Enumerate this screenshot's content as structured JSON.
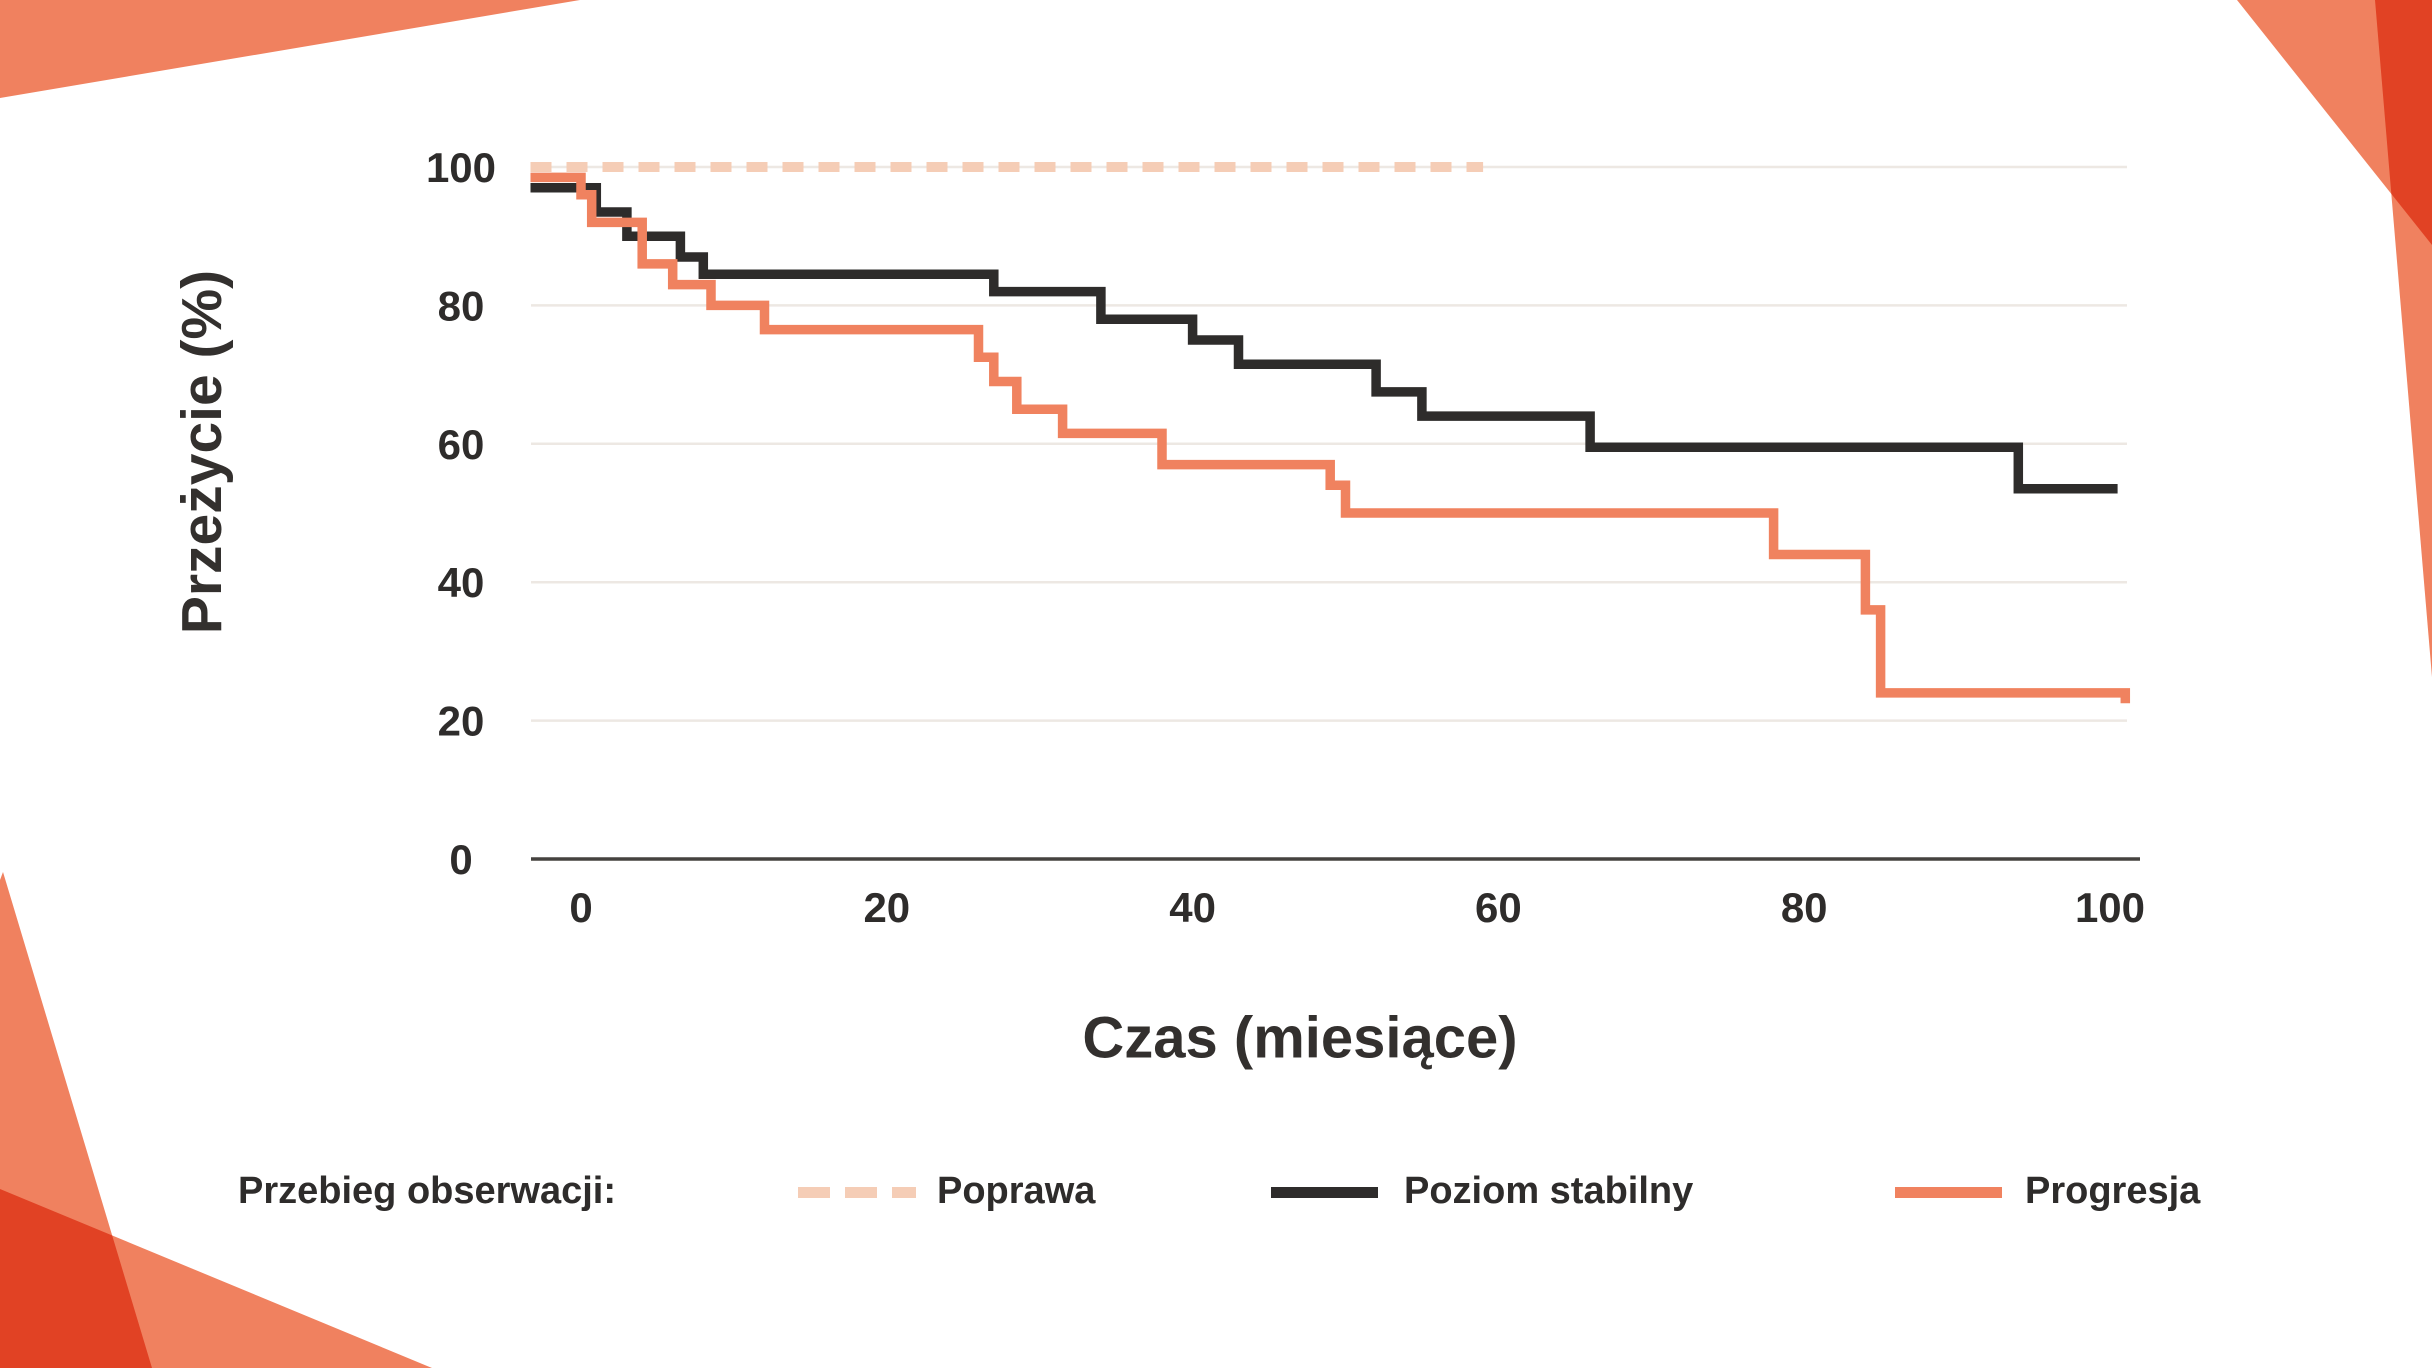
{
  "page": {
    "background": "#ffffff",
    "text_color": "#2E2C2B"
  },
  "decorations": {
    "corner_shape_color": "#F0815F",
    "overlap_blend_color": "#E24C2C",
    "description": "salmon corner wedges, overlaps darker red"
  },
  "chart_data": {
    "type": "line",
    "subtype": "kaplan-meier step curves",
    "title": "",
    "xlabel": "Czas (miesiące)",
    "ylabel": "Przeżycie (%)",
    "x_ticks": [
      0,
      20,
      40,
      60,
      80,
      100
    ],
    "y_ticks": [
      0,
      20,
      40,
      60,
      80,
      100
    ],
    "xlim": [
      -3.3,
      101.5
    ],
    "ylim": [
      0,
      100
    ],
    "grid": "horizontal",
    "x_start": -3.3,
    "series": [
      {
        "name": "Poprawa",
        "color": "#F5CDB6",
        "dash": true,
        "points": [
          [
            0,
            100
          ],
          [
            59,
            100
          ]
        ]
      },
      {
        "name": "Poziom stabilny",
        "color": "#2E2C2B",
        "dash": false,
        "points": [
          [
            0,
            97
          ],
          [
            1,
            93.5
          ],
          [
            3,
            90
          ],
          [
            6.5,
            87
          ],
          [
            8,
            84.5
          ],
          [
            27,
            82
          ],
          [
            34,
            78
          ],
          [
            40,
            75
          ],
          [
            43,
            71.5
          ],
          [
            52,
            67.5
          ],
          [
            55,
            64
          ],
          [
            66,
            59.5
          ],
          [
            94,
            53.5
          ],
          [
            100.5,
            53.5
          ]
        ]
      },
      {
        "name": "Progresja",
        "color": "#F0825F",
        "dash": false,
        "points": [
          [
            0,
            98.5
          ],
          [
            0,
            96
          ],
          [
            0.7,
            92
          ],
          [
            4,
            86
          ],
          [
            6,
            83
          ],
          [
            8.5,
            80
          ],
          [
            12,
            76.5
          ],
          [
            26,
            72.5
          ],
          [
            27,
            69
          ],
          [
            28.5,
            65
          ],
          [
            31.5,
            61.5
          ],
          [
            38,
            57
          ],
          [
            49,
            54
          ],
          [
            50,
            50
          ],
          [
            78,
            44
          ],
          [
            84,
            36
          ],
          [
            85,
            24
          ],
          [
            101,
            22.5
          ]
        ]
      }
    ]
  },
  "legend": {
    "title": "Przebieg obserwacji:",
    "items": [
      {
        "label": "Poprawa",
        "color": "#F5CDB6",
        "style": "dashed"
      },
      {
        "label": "Poziom stabilny",
        "color": "#2E2C2B",
        "style": "solid"
      },
      {
        "label": "Progresja",
        "color": "#F0825F",
        "style": "solid"
      }
    ]
  },
  "style": {
    "gridline_color": "#EDE8E3",
    "axis_color": "#45423F"
  }
}
